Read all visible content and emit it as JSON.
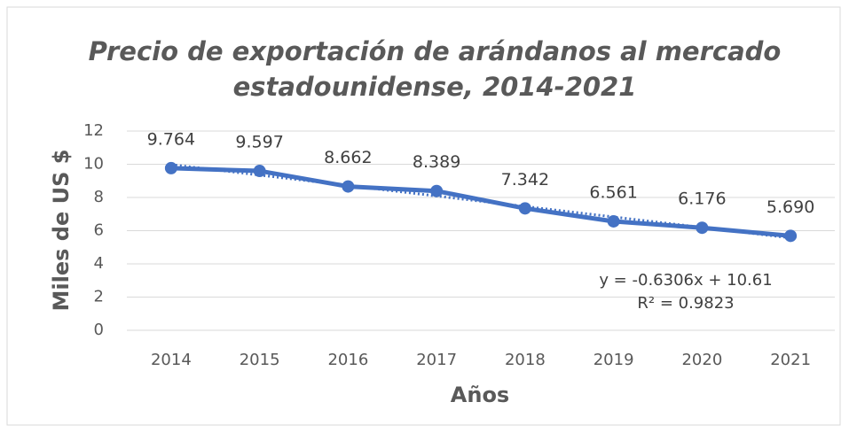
{
  "chart_data": {
    "type": "line",
    "title": [
      "Precio de exportación de arándanos al mercado",
      "estadounidense, 2014-2021"
    ],
    "x_label": "Años",
    "y_label": "Miles de US $",
    "categories": [
      "2014",
      "2015",
      "2016",
      "2017",
      "2018",
      "2019",
      "2020",
      "2021"
    ],
    "series": [
      {
        "name": "Precio",
        "color": "#4472c4",
        "values": [
          9.764,
          9.597,
          8.662,
          8.389,
          7.342,
          6.561,
          6.176,
          5.69
        ],
        "value_labels": [
          "9.764",
          "9.597",
          "8.662",
          "8.389",
          "7.342",
          "6.561",
          "6.176",
          "5.690"
        ]
      }
    ],
    "trendline": {
      "slope": -0.6306,
      "intercept": 10.61,
      "equation": "y = -0.6306x + 10.61",
      "r2": "R² = 0.9823"
    },
    "ylim": [
      0,
      12
    ],
    "yticks": [
      0,
      2,
      4,
      6,
      8,
      10,
      12
    ],
    "grid": true
  }
}
